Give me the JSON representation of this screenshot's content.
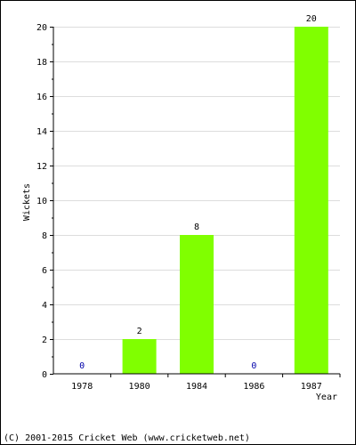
{
  "chart_data": {
    "type": "bar",
    "categories": [
      "1978",
      "1980",
      "1984",
      "1986",
      "1987"
    ],
    "values": [
      0,
      2,
      8,
      0,
      20
    ],
    "title": "",
    "xlabel": "Year",
    "ylabel": "Wickets",
    "ylim": [
      0,
      20
    ],
    "yticks": [
      0,
      2,
      4,
      6,
      8,
      10,
      12,
      14,
      16,
      18,
      20
    ],
    "grid": true,
    "bar_color": "#80ff00",
    "zero_label_color": "#0000aa"
  },
  "footer": {
    "credit": "(C) 2001-2015 Cricket Web (www.cricketweb.net)"
  }
}
